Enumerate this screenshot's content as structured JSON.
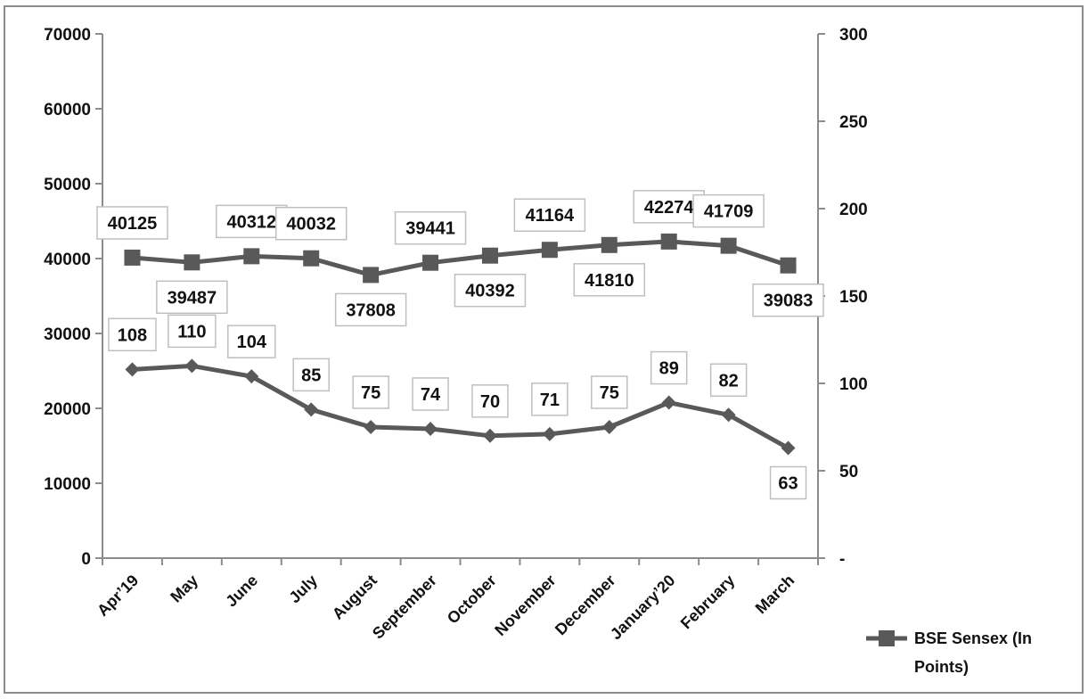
{
  "chart_data": {
    "type": "line",
    "categories": [
      "Apr’19",
      "May",
      "June",
      "July",
      "August",
      "September",
      "October",
      "November",
      "December",
      "January’20",
      "February",
      "March"
    ],
    "y_left": {
      "range": [
        0,
        70000
      ],
      "ticks": [
        "70000",
        "60000",
        "50000",
        "40000",
        "30000",
        "20000",
        "10000",
        "0"
      ]
    },
    "y_right": {
      "range": [
        0,
        300
      ],
      "ticks": [
        "300",
        "250",
        "200",
        "150",
        "100",
        "50",
        "-"
      ]
    },
    "series": [
      {
        "name": "BSE Sensex (In Points)",
        "axis": "left",
        "marker": "square",
        "color": "#595959",
        "values": [
          40125,
          39487,
          40312,
          40032,
          37808,
          39441,
          40392,
          41164,
          41810,
          42274,
          41709,
          39083
        ],
        "labels": [
          "40125",
          "39487",
          "40312",
          "40032",
          "37808",
          "39441",
          "40392",
          "41164",
          "41810",
          "42274",
          "41709",
          "39083"
        ]
      },
      {
        "axis": "right",
        "marker": "diamond",
        "color": "#595959",
        "values": [
          108,
          110,
          104,
          85,
          75,
          74,
          70,
          71,
          75,
          89,
          82,
          63
        ],
        "labels": [
          "108",
          "110",
          "104",
          "85",
          "75",
          "74",
          "70",
          "71",
          "75",
          "89",
          "82",
          "63"
        ]
      }
    ],
    "legend": {
      "position": "bottom-right",
      "lines": [
        "BSE Sensex (In",
        "Points)"
      ]
    },
    "grid": false
  }
}
